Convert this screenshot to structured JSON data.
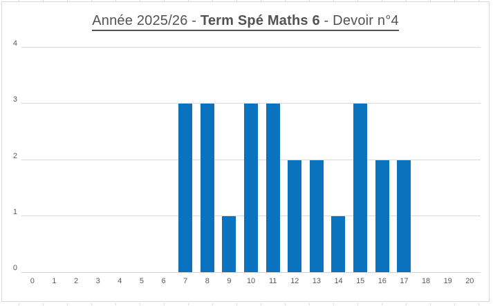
{
  "chart_data": {
    "type": "bar",
    "title": {
      "prefix": "Année 2025/26 - ",
      "bold": "Term Spé Maths 6",
      "suffix": " - Devoir n°4"
    },
    "categories": [
      "0",
      "1",
      "2",
      "3",
      "4",
      "5",
      "6",
      "7",
      "8",
      "9",
      "10",
      "11",
      "12",
      "13",
      "14",
      "15",
      "16",
      "17",
      "18",
      "19",
      "20"
    ],
    "values": [
      0,
      0,
      0,
      0,
      0,
      0,
      0,
      3,
      3,
      1,
      3,
      3,
      2,
      2,
      1,
      3,
      2,
      2,
      0,
      0,
      0
    ],
    "xlabel": "",
    "ylabel": "",
    "ylim": [
      0,
      4
    ],
    "yticks": [
      0,
      1,
      2,
      3,
      4
    ],
    "grid": "horizontal",
    "legend_position": "none",
    "colors": {
      "bar": "#0b72be",
      "gridline": "#d9d9d9",
      "axis_line": "#d2d2d2",
      "tick_labels": "#595959",
      "title": "#525252",
      "chart_border": "#d9d9d9",
      "background": "#ffffff"
    }
  }
}
